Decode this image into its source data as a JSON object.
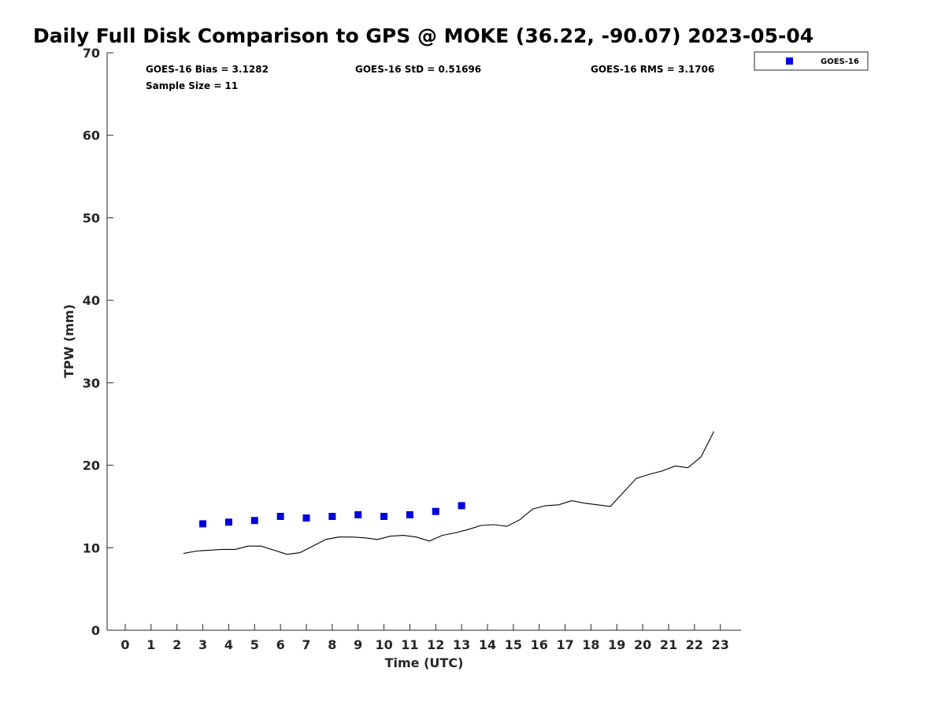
{
  "chart_data": {
    "type": "scatter",
    "title": "Daily Full Disk Comparison to GPS @ MOKE (36.22, -90.07) 2023-05-04",
    "xlabel": "Time (UTC)",
    "ylabel": "TPW (mm)",
    "xlim": [
      -0.7,
      23.8
    ],
    "ylim": [
      0,
      70
    ],
    "xticks": [
      0,
      1,
      2,
      3,
      4,
      5,
      6,
      7,
      8,
      9,
      10,
      11,
      12,
      13,
      14,
      15,
      16,
      17,
      18,
      19,
      20,
      21,
      22,
      23
    ],
    "yticks": [
      0,
      10,
      20,
      30,
      40,
      50,
      60,
      70
    ],
    "grid": false,
    "legend_position": "top-right",
    "stats": {
      "bias": "GOES-16 Bias = 3.1282",
      "std": "GOES-16 StD = 0.51696",
      "rms": "GOES-16 RMS = 3.1706",
      "sample_size": "Sample Size = 11"
    },
    "series": [
      {
        "name": "GOES-16",
        "kind": "scatter",
        "marker": "square",
        "color": "#0000dd",
        "x": [
          3,
          4,
          5,
          6,
          7,
          8,
          9,
          10,
          11,
          12,
          13
        ],
        "y": [
          12.9,
          13.1,
          13.3,
          13.8,
          13.6,
          13.8,
          14.0,
          13.8,
          14.0,
          14.4,
          15.1
        ]
      },
      {
        "kind": "line",
        "color": "#000000",
        "x": [
          2.25,
          2.75,
          3.25,
          3.75,
          4.25,
          4.75,
          5.25,
          5.75,
          6.25,
          6.75,
          7.25,
          7.75,
          8.25,
          8.75,
          9.25,
          9.75,
          10.25,
          10.75,
          11.25,
          11.75,
          12.25,
          12.75,
          13.25,
          13.75,
          14.25,
          14.75,
          15.25,
          15.75,
          16.25,
          16.75,
          17.25,
          17.75,
          18.25,
          18.75,
          19.25,
          19.75,
          20.25,
          20.75,
          21.25,
          21.75,
          22.25,
          22.75
        ],
        "y": [
          9.3,
          9.6,
          9.7,
          9.8,
          9.8,
          10.2,
          10.2,
          9.7,
          9.2,
          9.4,
          10.2,
          11.0,
          11.3,
          11.3,
          11.2,
          11.0,
          11.4,
          11.5,
          11.3,
          10.8,
          11.5,
          11.8,
          12.2,
          12.7,
          12.8,
          12.6,
          13.4,
          14.7,
          15.1,
          15.2,
          15.7,
          15.4,
          15.2,
          15.0,
          16.7,
          18.4,
          18.9,
          19.3,
          19.9,
          19.7,
          21.0,
          24.1
        ]
      }
    ]
  }
}
